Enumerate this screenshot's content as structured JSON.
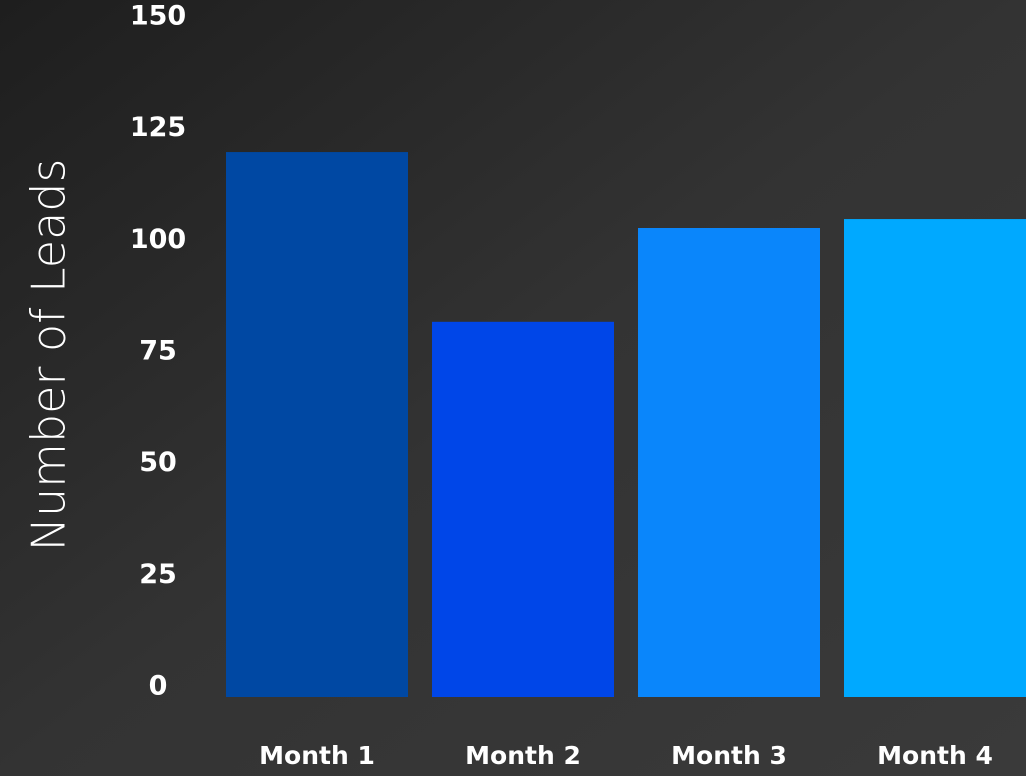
{
  "chart_data": {
    "type": "bar",
    "y_axis_label": "Number of Leads",
    "categories": [
      "Month 1",
      "Month 2",
      "Month 3",
      "Month 4"
    ],
    "values": [
      122,
      84,
      105,
      107
    ],
    "colors": [
      "#0048a3",
      "#0046e8",
      "#0a86fb",
      "#00a9ff"
    ],
    "ylim": [
      0,
      150
    ],
    "yticks": [
      0,
      25,
      50,
      75,
      100,
      125,
      150
    ],
    "grid": false
  }
}
